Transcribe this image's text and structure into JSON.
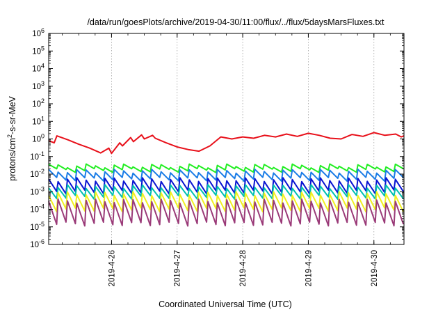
{
  "chart_data": {
    "type": "line",
    "title": "/data/run/goesPlots/archive/2019-04-30/11:00/flux/../flux/5daysMarsFluxes.txt",
    "xlabel": "Coordinated Universal Time (UTC)",
    "ylabel": {
      "prefix": "protons/cm",
      "superscript": "2",
      "suffix": "-s-sr-MeV"
    },
    "y_scale": "log",
    "ylim": [
      1e-06,
      1000000.0
    ],
    "y_ticks": [
      {
        "value": 1e-06,
        "base": "10",
        "exp": "-6"
      },
      {
        "value": 1e-05,
        "base": "10",
        "exp": "-5"
      },
      {
        "value": 0.0001,
        "base": "10",
        "exp": "-4"
      },
      {
        "value": 0.001,
        "base": "10",
        "exp": "-3"
      },
      {
        "value": 0.01,
        "base": "10",
        "exp": "-2"
      },
      {
        "value": 0.1,
        "base": "10",
        "exp": "-1"
      },
      {
        "value": 1,
        "base": "10",
        "exp": "0"
      },
      {
        "value": 10,
        "base": "10",
        "exp": "1"
      },
      {
        "value": 100,
        "base": "10",
        "exp": "2"
      },
      {
        "value": 1000,
        "base": "10",
        "exp": "3"
      },
      {
        "value": 10000,
        "base": "10",
        "exp": "4"
      },
      {
        "value": 100000,
        "base": "10",
        "exp": "5"
      },
      {
        "value": 1000000,
        "base": "10",
        "exp": "6"
      }
    ],
    "xlim": [
      "2019-04-25 01:00",
      "2019-04-30 11:00"
    ],
    "x_ticks": [
      "2019-4-26",
      "2019-4-27",
      "2019-4-28",
      "2019-4-29",
      "2019-4-30"
    ],
    "grid": true,
    "legend": "none",
    "series": [
      {
        "color": "#e8101a",
        "x": [
          "2019-04-25 01:00",
          "2019-04-25 03:00",
          "2019-04-25 04:00",
          "2019-04-25 08:00",
          "2019-04-25 12:00",
          "2019-04-25 16:00",
          "2019-04-25 20:00",
          "2019-04-25 23:00",
          "2019-04-26 00:00",
          "2019-04-26 03:00",
          "2019-04-26 04:00",
          "2019-04-26 07:00",
          "2019-04-26 08:00",
          "2019-04-26 11:00",
          "2019-04-26 12:00",
          "2019-04-26 15:00",
          "2019-04-26 16:00",
          "2019-04-26 20:00",
          "2019-04-27 00:00",
          "2019-04-27 04:00",
          "2019-04-27 08:00",
          "2019-04-27 12:00",
          "2019-04-27 16:00",
          "2019-04-27 20:00",
          "2019-04-28 00:00",
          "2019-04-28 04:00",
          "2019-04-28 08:00",
          "2019-04-28 12:00",
          "2019-04-28 16:00",
          "2019-04-28 20:00",
          "2019-04-29 00:00",
          "2019-04-29 04:00",
          "2019-04-29 08:00",
          "2019-04-29 12:00",
          "2019-04-29 16:00",
          "2019-04-29 20:00",
          "2019-04-30 00:00",
          "2019-04-30 04:00",
          "2019-04-30 08:00",
          "2019-04-30 10:00",
          "2019-04-30 11:00"
        ],
        "values": [
          0.8,
          0.6,
          1.5,
          0.9,
          0.5,
          0.3,
          0.16,
          0.3,
          0.15,
          0.6,
          0.4,
          1.2,
          0.7,
          1.7,
          1.0,
          1.6,
          1.1,
          0.6,
          0.35,
          0.25,
          0.2,
          0.4,
          1.3,
          1.0,
          1.3,
          1.1,
          1.6,
          1.3,
          1.9,
          1.4,
          2.1,
          1.6,
          1.1,
          1.0,
          1.8,
          1.4,
          2.3,
          1.6,
          1.9,
          1.3,
          1.5
        ]
      },
      {
        "color": "#22ee22",
        "x": [
          "2019-04-25 01:00",
          "2019-04-30 11:00"
        ],
        "values": [
          0.03,
          0.03
        ],
        "peaks_per_day": 7,
        "low_factor": 0.55
      },
      {
        "color": "#1a7ce6",
        "x": [
          "2019-04-25 01:00",
          "2019-04-30 11:00"
        ],
        "values": [
          0.015,
          0.015
        ],
        "peaks_per_day": 7,
        "low_factor": 0.35
      },
      {
        "color": "#0a14d2",
        "x": [
          "2019-04-25 01:00",
          "2019-04-30 11:00"
        ],
        "values": [
          0.005,
          0.005
        ],
        "peaks_per_day": 7,
        "low_factor": 0.2
      },
      {
        "color": "#00c0b0",
        "x": [
          "2019-04-25 01:00",
          "2019-04-30 11:00"
        ],
        "values": [
          0.002,
          0.002
        ],
        "peaks_per_day": 7,
        "low_factor": 0.25
      },
      {
        "color": "#f0f020",
        "x": [
          "2019-04-25 01:00",
          "2019-04-30 11:00"
        ],
        "values": [
          0.0008,
          0.0008
        ],
        "peaks_per_day": 7,
        "low_factor": 0.12
      },
      {
        "color": "#9a3a78",
        "x": [
          "2019-04-25 01:00",
          "2019-04-30 11:00"
        ],
        "values": [
          0.0003,
          0.0003
        ],
        "peaks_per_day": 7,
        "low_factor": 0.05
      }
    ]
  }
}
